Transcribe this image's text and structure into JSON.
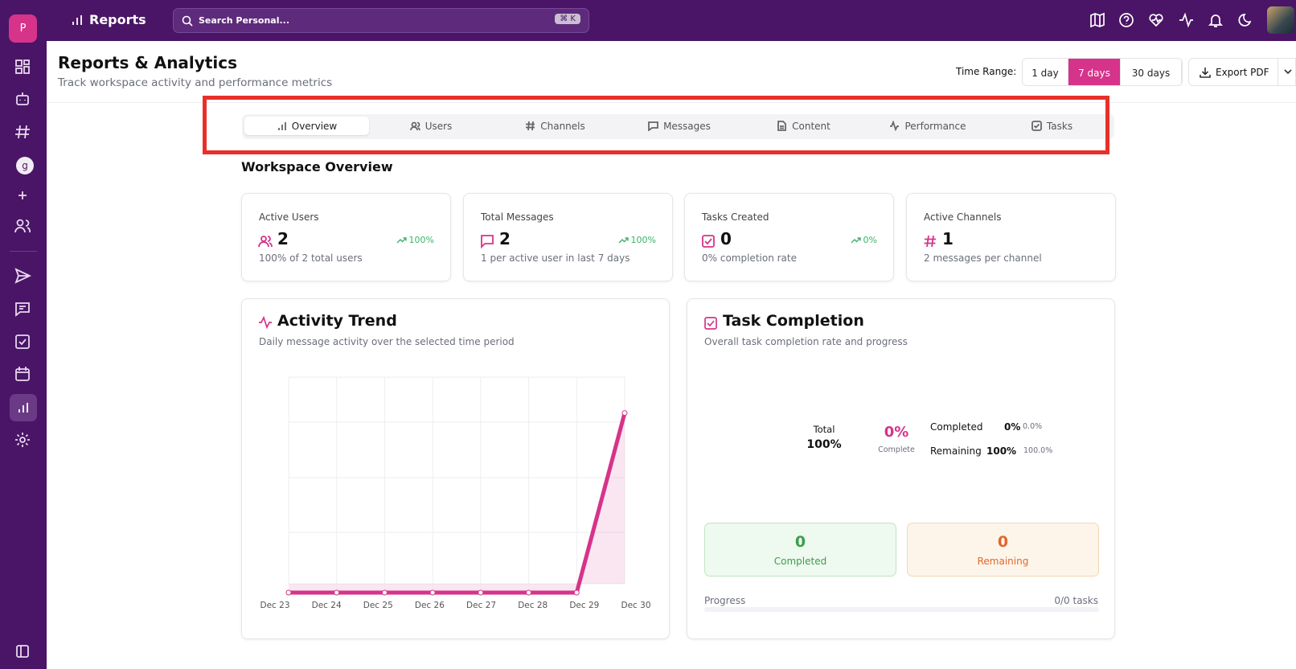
{
  "topbar": {
    "title": "Reports",
    "search_placeholder": "Search Personal...",
    "shortcut": "⌘ K",
    "workspace_initial": "P"
  },
  "sidebar": {
    "user_initial": "g"
  },
  "header": {
    "title": "Reports & Analytics",
    "subtitle": "Track workspace activity and performance metrics",
    "time_range_label": "Time Range:",
    "time_ranges": [
      "1 day",
      "7 days",
      "30 days"
    ],
    "selected_time_range": 1,
    "export": "Export PDF"
  },
  "tabs": {
    "items": [
      "Overview",
      "Users",
      "Channels",
      "Messages",
      "Content",
      "Performance",
      "Tasks"
    ],
    "active": 0
  },
  "section_title": "Workspace Overview",
  "stats": [
    {
      "label": "Active Users",
      "value": "2",
      "change": "100%",
      "note": "100% of 2 total users"
    },
    {
      "label": "Total Messages",
      "value": "2",
      "change": "100%",
      "note": "1 per active user in last 7 days"
    },
    {
      "label": "Tasks Created",
      "value": "0",
      "change": "0%",
      "note": "0% completion rate"
    },
    {
      "label": "Active Channels",
      "value": "1",
      "change": null,
      "note": "2 messages per channel"
    }
  ],
  "chart_data": {
    "type": "line",
    "title": "Activity Trend",
    "subtitle": "Daily message activity over the selected time period",
    "categories": [
      "Dec 23",
      "Dec 24",
      "Dec 25",
      "Dec 26",
      "Dec 27",
      "Dec 28",
      "Dec 29",
      "Dec 30"
    ],
    "values": [
      0,
      0,
      0,
      0,
      0,
      0,
      0,
      2
    ],
    "color": "#d6338a",
    "ylim": [
      0,
      2.4
    ],
    "grid": true
  },
  "task_completion": {
    "title": "Task Completion",
    "subtitle": "Overall task completion rate and progress",
    "total_label": "Total",
    "total_value": "100%",
    "rate": "0%",
    "rate_label": "Complete",
    "legend": [
      {
        "label": "Completed",
        "pct": "0%",
        "exact": "0.0%"
      },
      {
        "label": "Remaining",
        "pct": "100%",
        "exact": "100.0%"
      }
    ],
    "boxes": [
      {
        "value": "0",
        "label": "Completed"
      },
      {
        "value": "0",
        "label": "Remaining"
      }
    ],
    "progress_label": "Progress",
    "progress_text": "0/0 tasks"
  }
}
